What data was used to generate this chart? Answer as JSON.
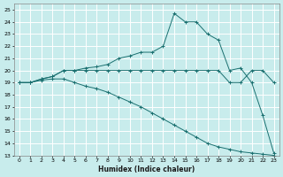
{
  "xlabel": "Humidex (Indice chaleur)",
  "bg_color": "#c8ecec",
  "line_color": "#1a7070",
  "grid_color": "#ffffff",
  "xlim": [
    -0.5,
    23.5
  ],
  "ylim": [
    13,
    25.5
  ],
  "yticks": [
    13,
    14,
    15,
    16,
    17,
    18,
    19,
    20,
    21,
    22,
    23,
    24,
    25
  ],
  "xticks": [
    0,
    1,
    2,
    3,
    4,
    5,
    6,
    7,
    8,
    9,
    10,
    11,
    12,
    13,
    14,
    15,
    16,
    17,
    18,
    19,
    20,
    21,
    22,
    23
  ],
  "curve1_x": [
    0,
    1,
    2,
    3,
    4,
    5,
    6,
    7,
    8,
    9,
    10,
    11,
    12,
    13,
    14,
    15,
    16,
    17,
    18,
    19,
    20,
    21,
    22,
    23
  ],
  "curve1_y": [
    19,
    19,
    19.3,
    19.5,
    20,
    20,
    20.2,
    20.3,
    20.5,
    21,
    21.2,
    21.5,
    21.5,
    22,
    24.7,
    24,
    24,
    23,
    22.5,
    20,
    20.2,
    19.0,
    16.3,
    13.2
  ],
  "curve2_x": [
    0,
    1,
    2,
    3,
    4,
    5,
    6,
    7,
    8,
    9,
    10,
    11,
    12,
    13,
    14,
    15,
    16,
    17,
    18,
    19,
    20,
    21,
    22,
    23
  ],
  "curve2_y": [
    19,
    19,
    19.3,
    19.5,
    20,
    20,
    20,
    20,
    20,
    20,
    20,
    20,
    20,
    20,
    20,
    20,
    20,
    20,
    20,
    19,
    19,
    20,
    20,
    19
  ],
  "curve3_x": [
    0,
    1,
    2,
    3,
    4,
    5,
    6,
    7,
    8,
    9,
    10,
    11,
    12,
    13,
    14,
    15,
    16,
    17,
    18,
    19,
    20,
    21,
    22,
    23
  ],
  "curve3_y": [
    19,
    19,
    19.2,
    19.3,
    19.3,
    19.0,
    18.7,
    18.5,
    18.2,
    17.8,
    17.4,
    17.0,
    16.5,
    16.0,
    15.5,
    15.0,
    14.5,
    14.0,
    13.7,
    13.5,
    13.3,
    13.2,
    13.1,
    13.0
  ]
}
